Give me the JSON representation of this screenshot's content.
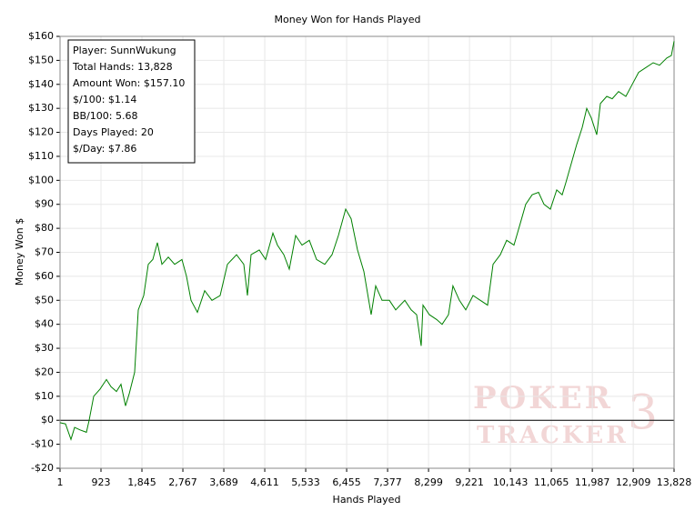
{
  "chart_data": {
    "type": "line",
    "title": "Money Won for Hands Played",
    "x_label": "Hands Played",
    "y_label": "Money Won $",
    "color": "#008000",
    "grid": true,
    "info_box": [
      "Player: SunnWukung",
      "Total Hands: 13,828",
      "Amount Won: $157.10",
      "$/100: $1.14",
      "BB/100: 5.68",
      "Days Played: 20",
      "$/Day: $7.86"
    ],
    "watermark": [
      "POKER",
      "TRACKER",
      "3"
    ],
    "xlim": [
      1,
      13828
    ],
    "ylim": [
      -20,
      160
    ],
    "xticks": [
      1,
      923,
      {
        "value": 1845,
        "label": "1,845"
      },
      {
        "value": 2767,
        "label": "2,767"
      },
      {
        "value": 3689,
        "label": "3,689"
      },
      {
        "value": 4611,
        "label": "4,611"
      },
      {
        "value": 5533,
        "label": "5,533"
      },
      {
        "value": 6455,
        "label": "6,455"
      },
      {
        "value": 7377,
        "label": "7,377"
      },
      {
        "value": 8299,
        "label": "8,299"
      },
      {
        "value": 9221,
        "label": "9,221"
      },
      {
        "value": 10143,
        "label": "10,143"
      },
      {
        "value": 11065,
        "label": "11,065"
      },
      {
        "value": 11987,
        "label": "11,987"
      },
      {
        "value": 12909,
        "label": "12,909"
      },
      {
        "value": 13828,
        "label": "13,828"
      }
    ],
    "yticks": [
      {
        "value": -20,
        "label": "-$20"
      },
      {
        "value": -10,
        "label": "-$10"
      },
      {
        "value": 0,
        "label": "$0"
      },
      {
        "value": 10,
        "label": "$10"
      },
      {
        "value": 20,
        "label": "$20"
      },
      {
        "value": 30,
        "label": "$30"
      },
      {
        "value": 40,
        "label": "$40"
      },
      {
        "value": 50,
        "label": "$50"
      },
      {
        "value": 60,
        "label": "$60"
      },
      {
        "value": 70,
        "label": "$70"
      },
      {
        "value": 80,
        "label": "$80"
      },
      {
        "value": 90,
        "label": "$90"
      },
      {
        "value": 100,
        "label": "$100"
      },
      {
        "value": 110,
        "label": "$110"
      },
      {
        "value": 120,
        "label": "$120"
      },
      {
        "value": 130,
        "label": "$130"
      },
      {
        "value": 140,
        "label": "$140"
      },
      {
        "value": 150,
        "label": "$150"
      },
      {
        "value": 160,
        "label": "$160"
      }
    ],
    "x": [
      1,
      124,
      247,
      329,
      452,
      595,
      656,
      759,
      902,
      1046,
      1148,
      1271,
      1373,
      1476,
      1558,
      1681,
      1763,
      1886,
      1988,
      2090,
      2193,
      2295,
      2439,
      2582,
      2746,
      2848,
      2951,
      3094,
      3258,
      3422,
      3606,
      3770,
      3975,
      4139,
      4221,
      4303,
      4487,
      4630,
      4794,
      4897,
      5040,
      5163,
      5306,
      5450,
      5614,
      5778,
      5962,
      6126,
      6269,
      6433,
      6556,
      6699,
      6843,
      7007,
      7109,
      7253,
      7416,
      7560,
      7765,
      7908,
      8031,
      8133,
      8174,
      8318,
      8481,
      8604,
      8747,
      8849,
      8993,
      9137,
      9301,
      9465,
      9628,
      9751,
      9915,
      10058,
      10222,
      10365,
      10488,
      10632,
      10776,
      10899,
      11042,
      11185,
      11308,
      11390,
      11513,
      11636,
      11759,
      11861,
      11964,
      12087,
      12169,
      12312,
      12435,
      12578,
      12742,
      12885,
      13029,
      13193,
      13357,
      13500,
      13664,
      13767,
      13828
    ],
    "values": [
      -1,
      -1.5,
      -8,
      -3,
      -4,
      -5,
      0,
      10,
      13,
      17,
      14,
      12,
      15,
      6,
      11,
      20,
      46,
      52,
      65,
      67,
      74,
      65,
      68,
      65,
      67,
      60,
      50,
      45,
      54,
      50,
      52,
      65,
      69,
      65,
      52,
      69,
      71,
      67,
      78,
      73,
      69,
      63,
      77,
      73,
      75,
      67,
      65,
      69,
      77,
      88,
      84,
      71,
      62,
      44,
      56,
      50,
      50,
      46,
      50,
      46,
      44,
      31,
      48,
      44,
      42,
      40,
      44,
      56,
      50,
      46,
      52,
      50,
      48,
      65,
      69,
      75,
      73,
      82,
      90,
      94,
      95,
      90,
      88,
      96,
      94,
      99,
      107,
      115,
      122,
      130,
      126,
      119,
      132,
      135,
      134,
      137,
      135,
      140,
      145,
      147,
      149,
      148,
      151,
      152,
      158
    ]
  }
}
